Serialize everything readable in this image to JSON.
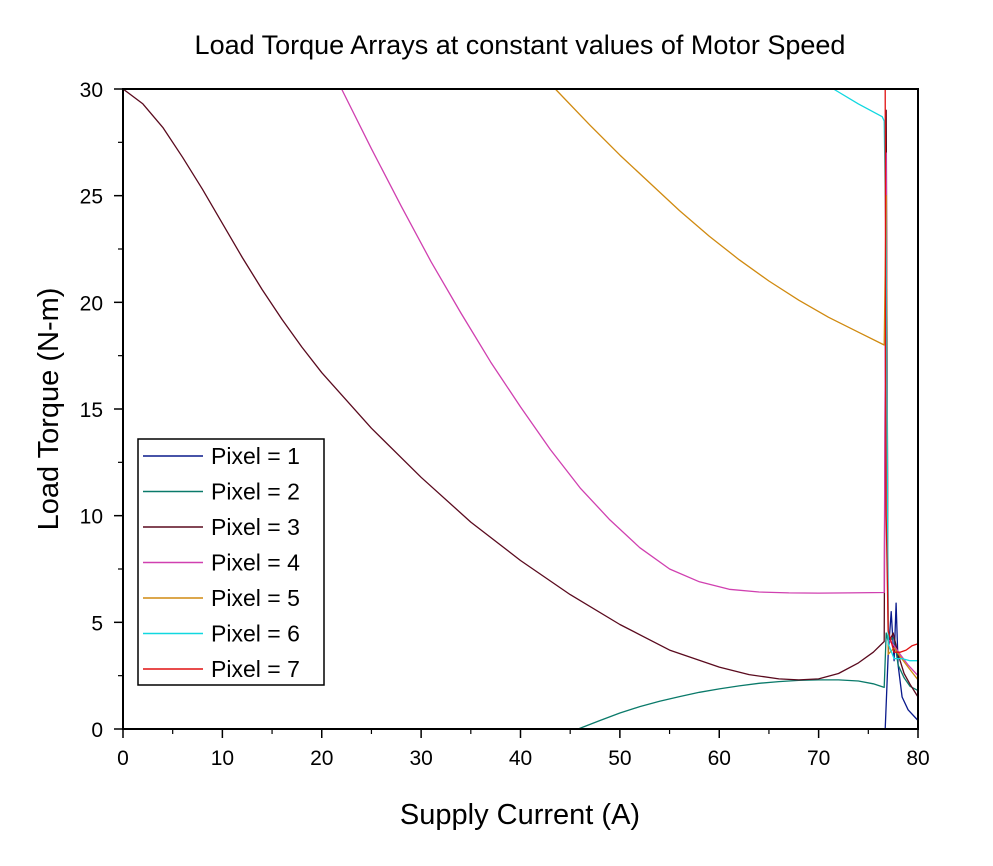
{
  "chart_data": {
    "type": "line",
    "title": "Load Torque Arrays at constant values of Motor Speed",
    "xlabel": "Supply Current (A)",
    "ylabel": "Load Torque (N-m)",
    "xlim": [
      0,
      80
    ],
    "ylim": [
      0,
      30
    ],
    "xticks": [
      "0",
      "10",
      "20",
      "30",
      "40",
      "50",
      "60",
      "70",
      "80"
    ],
    "yticks": [
      "0",
      "5",
      "10",
      "15",
      "20",
      "25",
      "30"
    ],
    "grid": false,
    "legend_position": "bottom-left",
    "series": [
      {
        "name": "Pixel = 1",
        "color": "#0a1a8c",
        "points": [
          [
            76.7,
            0
          ],
          [
            77.0,
            3.5
          ],
          [
            77.3,
            5.5
          ],
          [
            77.6,
            3.2
          ],
          [
            77.8,
            5.9
          ],
          [
            78.0,
            3.0
          ],
          [
            78.4,
            1.5
          ],
          [
            79.0,
            0.9
          ],
          [
            80.0,
            0.4
          ]
        ]
      },
      {
        "name": "Pixel = 2",
        "color": "#0a7a6a",
        "points": [
          [
            45.8,
            0
          ],
          [
            48,
            0.4
          ],
          [
            50,
            0.75
          ],
          [
            52,
            1.05
          ],
          [
            54,
            1.3
          ],
          [
            56,
            1.52
          ],
          [
            58,
            1.72
          ],
          [
            60,
            1.88
          ],
          [
            62,
            2.02
          ],
          [
            64,
            2.14
          ],
          [
            66,
            2.22
          ],
          [
            68,
            2.28
          ],
          [
            70,
            2.3
          ],
          [
            72,
            2.3
          ],
          [
            74,
            2.25
          ],
          [
            75.5,
            2.12
          ],
          [
            76.6,
            1.95
          ],
          [
            76.8,
            4.5
          ],
          [
            77.0,
            4.1
          ],
          [
            77.6,
            4.3
          ],
          [
            78.0,
            3.0
          ],
          [
            78.6,
            2.4
          ],
          [
            79.2,
            2.0
          ],
          [
            80.0,
            1.8
          ]
        ]
      },
      {
        "name": "Pixel = 3",
        "color": "#5a0a1e",
        "points": [
          [
            0,
            30
          ],
          [
            2,
            29.3
          ],
          [
            4,
            28.2
          ],
          [
            6,
            26.8
          ],
          [
            8,
            25.3
          ],
          [
            10,
            23.7
          ],
          [
            12,
            22.1
          ],
          [
            14,
            20.6
          ],
          [
            16,
            19.2
          ],
          [
            18,
            17.9
          ],
          [
            20,
            16.7
          ],
          [
            25,
            14.1
          ],
          [
            30,
            11.8
          ],
          [
            35,
            9.7
          ],
          [
            40,
            7.9
          ],
          [
            45,
            6.3
          ],
          [
            50,
            4.9
          ],
          [
            55,
            3.7
          ],
          [
            60,
            2.9
          ],
          [
            63,
            2.55
          ],
          [
            66,
            2.35
          ],
          [
            68,
            2.3
          ],
          [
            70,
            2.35
          ],
          [
            72,
            2.6
          ],
          [
            74,
            3.1
          ],
          [
            75.5,
            3.6
          ],
          [
            76.6,
            4.1
          ],
          [
            76.8,
            29.0
          ],
          [
            77.0,
            4.0
          ],
          [
            77.5,
            4.5
          ],
          [
            78.0,
            3.5
          ],
          [
            78.6,
            2.6
          ],
          [
            79.2,
            2.1
          ],
          [
            80.0,
            1.5
          ]
        ]
      },
      {
        "name": "Pixel = 4",
        "color": "#d040b0",
        "points": [
          [
            22,
            30
          ],
          [
            25,
            27.2
          ],
          [
            28,
            24.5
          ],
          [
            31,
            21.9
          ],
          [
            34,
            19.5
          ],
          [
            37,
            17.2
          ],
          [
            40,
            15.1
          ],
          [
            43,
            13.1
          ],
          [
            46,
            11.3
          ],
          [
            49,
            9.8
          ],
          [
            52,
            8.5
          ],
          [
            55,
            7.5
          ],
          [
            58,
            6.9
          ],
          [
            61,
            6.55
          ],
          [
            64,
            6.42
          ],
          [
            67,
            6.38
          ],
          [
            70,
            6.37
          ],
          [
            73,
            6.38
          ],
          [
            76.6,
            6.4
          ],
          [
            76.8,
            27.0
          ],
          [
            77.0,
            4.2
          ],
          [
            77.6,
            3.9
          ],
          [
            78.2,
            3.5
          ],
          [
            79.0,
            3.0
          ],
          [
            80.0,
            2.5
          ]
        ]
      },
      {
        "name": "Pixel = 5",
        "color": "#d08a10",
        "points": [
          [
            43.5,
            30
          ],
          [
            47,
            28.3
          ],
          [
            50,
            26.9
          ],
          [
            53,
            25.6
          ],
          [
            56,
            24.3
          ],
          [
            59,
            23.1
          ],
          [
            62,
            22.0
          ],
          [
            65,
            21.0
          ],
          [
            68,
            20.1
          ],
          [
            71,
            19.3
          ],
          [
            74,
            18.6
          ],
          [
            76.6,
            18.0
          ],
          [
            76.8,
            25.0
          ],
          [
            77.0,
            3.5
          ],
          [
            77.6,
            3.8
          ],
          [
            78.2,
            3.4
          ],
          [
            79.0,
            2.9
          ],
          [
            80.0,
            2.3
          ]
        ]
      },
      {
        "name": "Pixel = 6",
        "color": "#10d8e0",
        "points": [
          [
            71.5,
            30
          ],
          [
            74,
            29.3
          ],
          [
            76.4,
            28.7
          ],
          [
            76.6,
            28.5
          ],
          [
            76.8,
            22.0
          ],
          [
            77.0,
            4.0
          ],
          [
            77.6,
            3.3
          ],
          [
            78.4,
            3.3
          ],
          [
            79.2,
            3.2
          ],
          [
            80.0,
            3.2
          ]
        ]
      },
      {
        "name": "Pixel = 7",
        "color": "#e01010",
        "points": [
          [
            76.7,
            30
          ],
          [
            76.75,
            16.0
          ],
          [
            76.8,
            10.0
          ],
          [
            77.0,
            4.6
          ],
          [
            77.6,
            3.6
          ],
          [
            78.2,
            3.6
          ],
          [
            78.8,
            3.7
          ],
          [
            79.4,
            3.9
          ],
          [
            80.0,
            4.0
          ]
        ]
      }
    ]
  }
}
